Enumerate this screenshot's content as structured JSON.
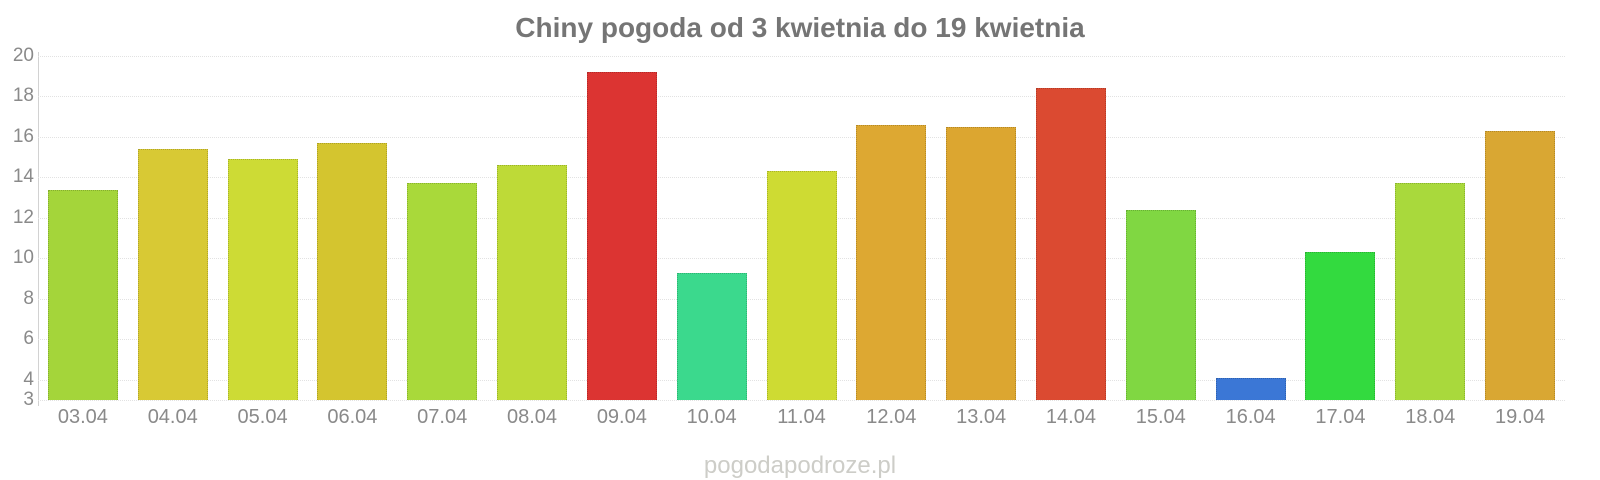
{
  "title": "Chiny pogoda od 3 kwietnia do 19 kwietnia",
  "watermark": "pogodapodroze.pl",
  "chart_data": {
    "type": "bar",
    "title": "Chiny pogoda od 3 kwietnia do 19 kwietnia",
    "xlabel": "",
    "ylabel": "",
    "categories": [
      "03.04",
      "04.04",
      "05.04",
      "06.04",
      "07.04",
      "08.04",
      "09.04",
      "10.04",
      "11.04",
      "12.04",
      "13.04",
      "14.04",
      "15.04",
      "16.04",
      "17.04",
      "18.04",
      "19.04"
    ],
    "values": [
      13.4,
      15.4,
      14.9,
      15.7,
      13.7,
      14.6,
      19.2,
      9.3,
      14.3,
      16.6,
      16.5,
      18.4,
      12.4,
      4.1,
      10.3,
      13.7,
      16.3
    ],
    "bar_colors": [
      "#a4d53a",
      "#d8c934",
      "#cddb35",
      "#d4c52f",
      "#a9d93a",
      "#beda37",
      "#dc3432",
      "#3bd98d",
      "#cedb33",
      "#dda832",
      "#dca630",
      "#db4a31",
      "#80d742",
      "#3b77d6",
      "#33da3f",
      "#a9d93c",
      "#d9a733"
    ],
    "ylim": [
      3,
      20
    ],
    "yticks": [
      3,
      4,
      6,
      8,
      10,
      12,
      14,
      16,
      18,
      20
    ],
    "grid": "dotted-horizontal",
    "legend": "none",
    "axis_color": "#d2d2d2",
    "gridline_color": "#e2e2e2",
    "tick_label_color": "#8a8a8a",
    "title_color": "#757575",
    "watermark_color": "#cdcdc8",
    "background_color": "#ffffff"
  }
}
